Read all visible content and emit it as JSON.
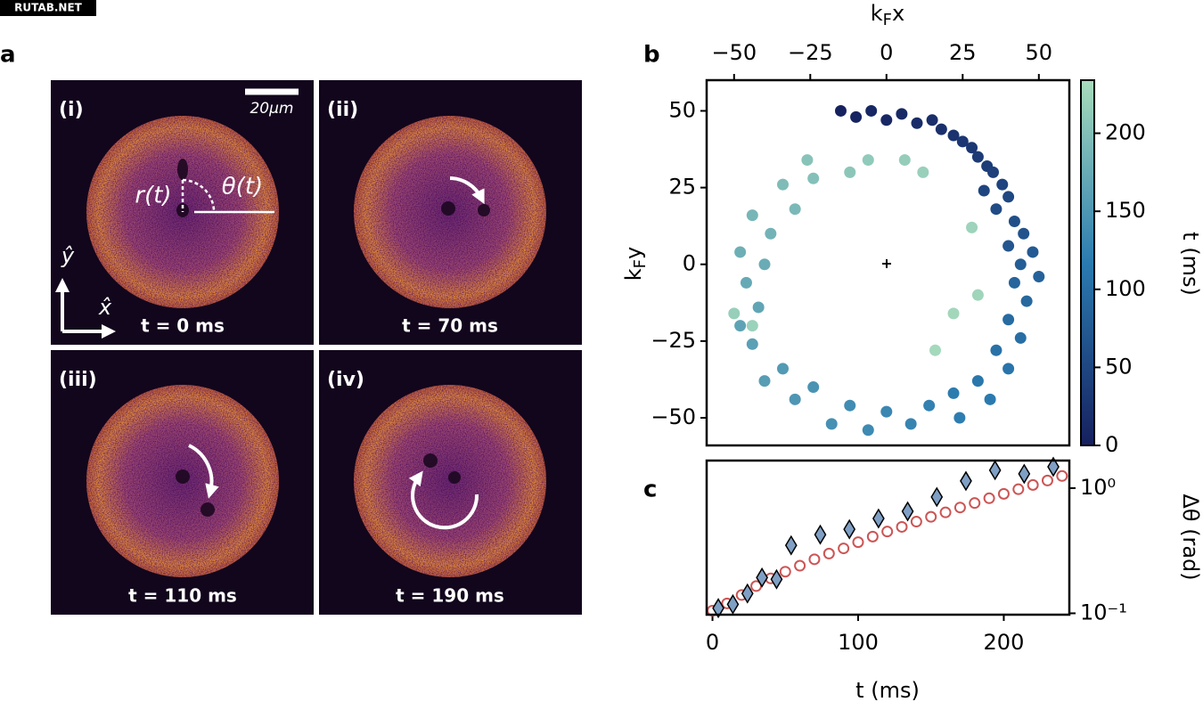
{
  "watermark": "RUTAB.NET",
  "panel_a": {
    "label": "a",
    "scale_bar": "20μm",
    "r_label": "r(t)",
    "theta_label": "θ(t)",
    "y_axis": "ŷ",
    "x_axis": "x̂",
    "images": [
      {
        "label": "(i)",
        "time": "t = 0 ms"
      },
      {
        "label": "(ii)",
        "time": "t = 70 ms"
      },
      {
        "label": "(iii)",
        "time": "t = 110 ms"
      },
      {
        "label": "(iv)",
        "time": "t = 190 ms"
      }
    ]
  },
  "chart_data": [
    {
      "type": "scatter",
      "panel_label": "b",
      "xlabel": [
        "k",
        "F",
        "x"
      ],
      "ylabel": [
        "k",
        "F",
        "y"
      ],
      "xlim": [
        -59,
        60
      ],
      "ylim": [
        -59,
        60
      ],
      "xticks": [
        {
          "value": -50,
          "label": "−50"
        },
        {
          "value": -25,
          "label": "−25"
        },
        0,
        25,
        50
      ],
      "yticks": [
        50,
        25,
        0,
        {
          "value": -25,
          "label": "−25"
        },
        {
          "value": -50,
          "label": "−50"
        }
      ],
      "x": [
        -15,
        -10,
        -5,
        0,
        5,
        10,
        15,
        18,
        22,
        25,
        28,
        30,
        33,
        35,
        38,
        32,
        40,
        36,
        42,
        45,
        40,
        48,
        44,
        50,
        42,
        46,
        40,
        44,
        36,
        40,
        30,
        34,
        22,
        24,
        14,
        8,
        0,
        -6,
        -12,
        -18,
        -24,
        -30,
        -34,
        -40,
        -44,
        -48,
        -42,
        -46,
        -40,
        -48,
        -38,
        -44,
        -30,
        -34,
        -24,
        -26,
        -12,
        -6,
        6,
        12,
        28,
        30,
        22,
        16,
        -50,
        -44
      ],
      "values": [
        50,
        48,
        50,
        47,
        49,
        46,
        47,
        44,
        42,
        40,
        38,
        35,
        32,
        30,
        26,
        24,
        22,
        18,
        14,
        10,
        6,
        4,
        0,
        -4,
        -6,
        -12,
        -18,
        -24,
        -28,
        -34,
        -38,
        -44,
        -42,
        -50,
        -46,
        -52,
        -48,
        -54,
        -46,
        -52,
        -40,
        -44,
        -34,
        -38,
        -26,
        -20,
        -14,
        -6,
        0,
        4,
        10,
        16,
        18,
        26,
        28,
        34,
        30,
        34,
        34,
        30,
        12,
        -10,
        -16,
        -28,
        -16,
        -20
      ],
      "color_values": [
        2,
        5,
        8,
        10,
        12,
        15,
        18,
        20,
        24,
        28,
        30,
        33,
        36,
        40,
        45,
        48,
        50,
        55,
        60,
        65,
        70,
        75,
        80,
        85,
        88,
        92,
        96,
        100,
        104,
        108,
        112,
        116,
        118,
        120,
        124,
        128,
        132,
        135,
        138,
        142,
        146,
        150,
        154,
        158,
        162,
        165,
        168,
        172,
        176,
        180,
        184,
        188,
        192,
        196,
        200,
        204,
        208,
        212,
        216,
        220,
        224,
        226,
        228,
        230,
        218,
        222
      ],
      "colorbar": {
        "label": "t (ms)",
        "lim": [
          0,
          234
        ],
        "ticks": [
          0,
          50,
          100,
          150,
          200
        ],
        "colors": [
          "#16205e",
          "#2b7bb0",
          "#a8dcbc"
        ]
      }
    },
    {
      "type": "scatter",
      "panel_label": "c",
      "xlabel": "t (ms)",
      "ylabel": "Δθ (rad)",
      "log_y": true,
      "xlim": [
        -4,
        245
      ],
      "ylim": [
        0.0975,
        1.66
      ],
      "xticks": [
        0,
        100,
        200
      ],
      "yticks": [
        {
          "value": 0.1,
          "label": "10⁻¹"
        },
        {
          "value": 1,
          "label": "10⁰"
        }
      ],
      "series": [
        {
          "marker": "circle",
          "color": "#cc5555",
          "x": [
            0,
            10,
            20,
            30,
            40,
            50,
            60,
            70,
            80,
            90,
            100,
            110,
            120,
            130,
            140,
            150,
            160,
            170,
            180,
            190,
            200,
            210,
            220,
            230,
            240
          ],
          "values": [
            0.105,
            0.12,
            0.14,
            0.165,
            0.19,
            0.215,
            0.24,
            0.27,
            0.3,
            0.33,
            0.37,
            0.41,
            0.45,
            0.49,
            0.54,
            0.59,
            0.64,
            0.7,
            0.76,
            0.83,
            0.9,
            0.98,
            1.06,
            1.15,
            1.25
          ]
        },
        {
          "marker": "diamond",
          "color": "#7f9fc4",
          "x": [
            4,
            14,
            24,
            34,
            44,
            54,
            74,
            94,
            114,
            134,
            154,
            174,
            194,
            214,
            234
          ],
          "values": [
            0.11,
            0.118,
            0.144,
            0.193,
            0.187,
            0.349,
            0.425,
            0.469,
            0.572,
            0.652,
            0.849,
            1.14,
            1.39,
            1.3,
            1.48
          ]
        }
      ]
    }
  ]
}
